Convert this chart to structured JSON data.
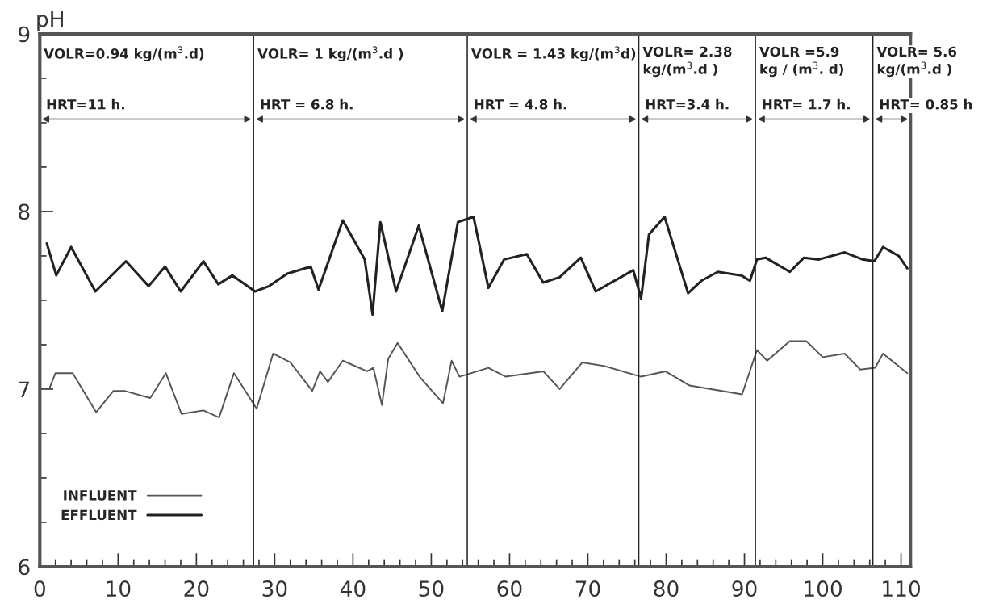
{
  "chart_data": {
    "type": "line",
    "ylabel": "pH",
    "xlim": [
      0,
      111.2
    ],
    "ylim": [
      6,
      9
    ],
    "xticks": [
      0,
      {
        "value": 2,
        "label": null
      },
      {
        "value": 4,
        "label": null
      },
      {
        "value": 6,
        "label": null
      },
      {
        "value": 8,
        "label": null
      },
      10,
      {
        "value": 12,
        "label": null
      },
      {
        "value": 14,
        "label": null
      },
      {
        "value": 16,
        "label": null
      },
      {
        "value": 18,
        "label": null
      },
      20,
      {
        "value": 22,
        "label": null
      },
      {
        "value": 24,
        "label": null
      },
      {
        "value": 26,
        "label": null
      },
      {
        "value": 28,
        "label": null
      },
      30,
      {
        "value": 32,
        "label": null
      },
      {
        "value": 34,
        "label": null
      },
      {
        "value": 36,
        "label": null
      },
      {
        "value": 38,
        "label": null
      },
      40,
      {
        "value": 42,
        "label": null
      },
      {
        "value": 44,
        "label": null
      },
      {
        "value": 46,
        "label": null
      },
      {
        "value": 48,
        "label": null
      },
      50,
      {
        "value": 52,
        "label": null
      },
      {
        "value": 54,
        "label": null
      },
      {
        "value": 56,
        "label": null
      },
      {
        "value": 58,
        "label": null
      },
      60,
      {
        "value": 62,
        "label": null
      },
      {
        "value": 64,
        "label": null
      },
      {
        "value": 66,
        "label": null
      },
      {
        "value": 68,
        "label": null
      },
      70,
      {
        "value": 72,
        "label": null
      },
      {
        "value": 74,
        "label": null
      },
      {
        "value": 76,
        "label": null
      },
      {
        "value": 78,
        "label": null
      },
      80,
      {
        "value": 82,
        "label": null
      },
      {
        "value": 84,
        "label": null
      },
      {
        "value": 86,
        "label": null
      },
      {
        "value": 88,
        "label": null
      },
      90,
      {
        "value": 92,
        "label": null
      },
      {
        "value": 94,
        "label": null
      },
      {
        "value": 96,
        "label": null
      },
      {
        "value": 98,
        "label": null
      },
      100,
      {
        "value": 102,
        "label": null
      },
      {
        "value": 104,
        "label": null
      },
      {
        "value": 106,
        "label": null
      },
      {
        "value": 108,
        "label": null
      },
      110
    ],
    "yticks": [
      6,
      {
        "value": 6.25,
        "label": null
      },
      {
        "value": 6.5,
        "label": null
      },
      {
        "value": 6.75,
        "label": null
      },
      7,
      {
        "value": 7.25,
        "label": null
      },
      {
        "value": 7.5,
        "label": null
      },
      {
        "value": 7.75,
        "label": null
      },
      8,
      {
        "value": 8.25,
        "label": null
      },
      {
        "value": 8.5,
        "label": null
      },
      {
        "value": 8.75,
        "label": null
      },
      9
    ],
    "grid": false,
    "legend": "bottom left",
    "marker": "none",
    "line_style": "solid",
    "series": [
      {
        "name": "INFLUENT",
        "color": "#555555",
        "x": [
          1.2,
          2.0,
          4.2,
          7.2,
          9.4,
          10.8,
          14.1,
          16.1,
          18.1,
          20.9,
          22.9,
          24.8,
          27.7,
          29.8,
          32.0,
          34.8,
          35.8,
          36.8,
          38.7,
          41.8,
          42.6,
          43.7,
          44.5,
          45.7,
          48.5,
          51.5,
          52.6,
          53.6,
          57.3,
          59.5,
          64.3,
          66.4,
          69.3,
          72.1,
          76.8,
          79.9,
          83.0,
          89.7,
          91.6,
          92.9,
          95.8,
          97.9,
          100.0,
          102.8,
          104.8,
          106.7,
          107.7,
          110.8
        ],
        "values": [
          7.0,
          7.09,
          7.09,
          6.87,
          6.99,
          6.99,
          6.95,
          7.09,
          6.86,
          6.88,
          6.84,
          7.09,
          6.89,
          7.2,
          7.15,
          6.99,
          7.1,
          7.04,
          7.16,
          7.1,
          7.12,
          6.91,
          7.17,
          7.26,
          7.07,
          6.92,
          7.16,
          7.07,
          7.12,
          7.07,
          7.1,
          7.0,
          7.15,
          7.13,
          7.07,
          7.1,
          7.02,
          6.97,
          7.22,
          7.16,
          7.27,
          7.27,
          7.18,
          7.2,
          7.11,
          7.12,
          7.2,
          7.09
        ]
      },
      {
        "name": "EFFLUENT",
        "color": "#222222",
        "x": [
          0.9,
          2.1,
          4.0,
          7.1,
          11.0,
          13.9,
          16.0,
          18.0,
          20.9,
          22.8,
          24.6,
          27.5,
          29.3,
          31.6,
          34.6,
          35.6,
          38.7,
          41.5,
          42.5,
          43.5,
          45.5,
          48.4,
          51.4,
          53.4,
          55.4,
          57.3,
          59.3,
          62.2,
          64.3,
          66.4,
          69.1,
          71.0,
          75.8,
          76.8,
          77.8,
          79.8,
          82.8,
          84.5,
          86.6,
          89.6,
          90.7,
          91.6,
          92.7,
          95.8,
          97.6,
          99.5,
          102.8,
          105.1,
          106.6,
          107.7,
          109.7,
          110.8
        ],
        "values": [
          7.82,
          7.64,
          7.8,
          7.55,
          7.72,
          7.58,
          7.69,
          7.55,
          7.72,
          7.59,
          7.64,
          7.55,
          7.58,
          7.65,
          7.69,
          7.56,
          7.95,
          7.73,
          7.42,
          7.94,
          7.55,
          7.92,
          7.44,
          7.94,
          7.97,
          7.57,
          7.73,
          7.76,
          7.6,
          7.63,
          7.74,
          7.55,
          7.67,
          7.51,
          7.87,
          7.97,
          7.54,
          7.61,
          7.66,
          7.64,
          7.61,
          7.73,
          7.74,
          7.66,
          7.74,
          7.73,
          7.77,
          7.73,
          7.72,
          7.8,
          7.75,
          7.68
        ]
      }
    ],
    "ref_lines": [
      {
        "axis": "x",
        "value": 27.3
      },
      {
        "axis": "x",
        "value": 54.6
      },
      {
        "axis": "x",
        "value": 76.5
      },
      {
        "axis": "x",
        "value": 91.4
      },
      {
        "axis": "x",
        "value": 106.4
      }
    ],
    "annotations": [
      "VOLR=0.94 kg/(m$^{3}$.d)",
      "HRT=11 h.",
      "VOLR= 1 kg/(m$^{3}$.d )",
      "HRT = 6.8 h.",
      "VOLR = 1.43 kg/(m$^{3}$d)",
      "HRT = 4.8 h.",
      "VOLR= 2.38\nkg/(m$^{3}$.d )",
      "HRT=3.4 h.",
      "VOLR =5.9\nkg / (m$^{3}$. d)",
      "HRT= 1.7 h.",
      "VOLR= 5.6\nkg/(m$^{3}$.d )",
      "HRT= 0.85 h"
    ]
  }
}
